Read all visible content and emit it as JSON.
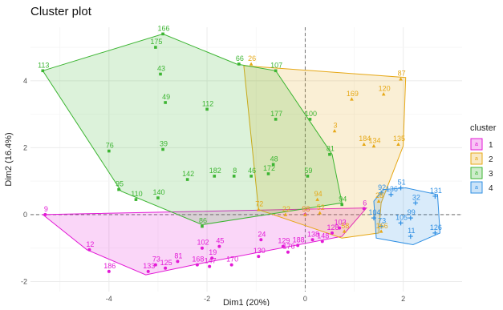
{
  "chart_data": {
    "type": "scatter",
    "title": "Cluster plot",
    "xlabel": "Dim1 (20%)",
    "ylabel": "Dim2 (16.4%)",
    "xlim": [
      -5.6,
      3.2
    ],
    "ylim": [
      -2.3,
      5.6
    ],
    "x_ticks": [
      -4,
      -2,
      0,
      2
    ],
    "y_ticks": [
      -2,
      0,
      2,
      4
    ],
    "grid": true,
    "legend": {
      "title": "cluster",
      "position": "right"
    },
    "series": [
      {
        "name": "1",
        "color": "#e31ad6",
        "marker": "circle",
        "points": [
          {
            "label": "9",
            "x": -5.3,
            "y": 0.0
          },
          {
            "label": "12",
            "x": -4.4,
            "y": -1.05
          },
          {
            "label": "73",
            "x": -3.05,
            "y": -1.5
          },
          {
            "label": "81",
            "x": -2.6,
            "y": -1.4
          },
          {
            "label": "125",
            "x": -2.85,
            "y": -1.6
          },
          {
            "label": "186",
            "x": -4.0,
            "y": -1.7
          },
          {
            "label": "133",
            "x": -3.2,
            "y": -1.7
          },
          {
            "label": "168",
            "x": -2.2,
            "y": -1.5
          },
          {
            "label": "45",
            "x": -1.75,
            "y": -0.95
          },
          {
            "label": "19",
            "x": -1.9,
            "y": -1.3
          },
          {
            "label": "147",
            "x": -1.95,
            "y": -1.55
          },
          {
            "label": "170",
            "x": -1.5,
            "y": -1.5
          },
          {
            "label": "24",
            "x": -0.9,
            "y": -0.75
          },
          {
            "label": "129",
            "x": -0.45,
            "y": -0.95
          },
          {
            "label": "188",
            "x": -0.15,
            "y": -0.92
          },
          {
            "label": "130",
            "x": -0.95,
            "y": -1.25
          },
          {
            "label": "176",
            "x": -0.35,
            "y": -1.12
          },
          {
            "label": "138",
            "x": 0.15,
            "y": -0.75
          },
          {
            "label": "148",
            "x": 0.35,
            "y": -0.8
          },
          {
            "label": "128",
            "x": 0.55,
            "y": -0.55
          },
          {
            "label": "103",
            "x": 0.7,
            "y": -0.4
          },
          {
            "label": "6",
            "x": 1.2,
            "y": 0.18
          },
          {
            "label": "102",
            "x": -2.1,
            "y": -1.0
          },
          {
            "label": "98",
            "x": 0.0,
            "y": 0.0
          }
        ]
      },
      {
        "name": "2",
        "color": "#e6a817",
        "marker": "triangle",
        "points": [
          {
            "label": "26",
            "x": -1.1,
            "y": 4.5
          },
          {
            "label": "87",
            "x": 1.95,
            "y": 4.05
          },
          {
            "label": "120",
            "x": 1.6,
            "y": 3.6
          },
          {
            "label": "169",
            "x": 0.95,
            "y": 3.45
          },
          {
            "label": "3",
            "x": 0.6,
            "y": 2.5
          },
          {
            "label": "184",
            "x": 1.2,
            "y": 2.1
          },
          {
            "label": "134",
            "x": 1.4,
            "y": 2.05
          },
          {
            "label": "135",
            "x": 1.9,
            "y": 2.1
          },
          {
            "label": "94",
            "x": 0.25,
            "y": 0.45
          },
          {
            "label": "72",
            "x": -0.95,
            "y": 0.15
          },
          {
            "label": "22",
            "x": -0.4,
            "y": 0.0
          },
          {
            "label": "98",
            "x": 0.0,
            "y": 0.0
          },
          {
            "label": "52",
            "x": 0.3,
            "y": 0.05
          },
          {
            "label": "28",
            "x": 1.5,
            "y": 0.4
          },
          {
            "label": "166",
            "x": 1.55,
            "y": -0.5
          },
          {
            "label": "58",
            "x": 0.8,
            "y": -0.5
          }
        ]
      },
      {
        "name": "3",
        "color": "#3cb532",
        "marker": "square",
        "points": [
          {
            "label": "113",
            "x": -5.35,
            "y": 4.3
          },
          {
            "label": "166",
            "x": -2.9,
            "y": 5.4
          },
          {
            "label": "175",
            "x": -3.05,
            "y": 5.0
          },
          {
            "label": "43",
            "x": -2.95,
            "y": 4.2
          },
          {
            "label": "49",
            "x": -2.85,
            "y": 3.35
          },
          {
            "label": "112",
            "x": -2.0,
            "y": 3.15
          },
          {
            "label": "66",
            "x": -1.35,
            "y": 4.5
          },
          {
            "label": "107",
            "x": -0.6,
            "y": 4.3
          },
          {
            "label": "177",
            "x": -0.6,
            "y": 2.85
          },
          {
            "label": "100",
            "x": 0.1,
            "y": 2.85
          },
          {
            "label": "76",
            "x": -4.0,
            "y": 1.9
          },
          {
            "label": "39",
            "x": -2.9,
            "y": 1.95
          },
          {
            "label": "81",
            "x": 0.5,
            "y": 1.8
          },
          {
            "label": "48",
            "x": -0.65,
            "y": 1.5
          },
          {
            "label": "172",
            "x": -0.75,
            "y": 1.22
          },
          {
            "label": "46",
            "x": -1.1,
            "y": 1.15
          },
          {
            "label": "8",
            "x": -1.45,
            "y": 1.15
          },
          {
            "label": "182",
            "x": -1.85,
            "y": 1.15
          },
          {
            "label": "142",
            "x": -2.4,
            "y": 1.05
          },
          {
            "label": "59",
            "x": 0.05,
            "y": 1.15
          },
          {
            "label": "95",
            "x": -3.8,
            "y": 0.75
          },
          {
            "label": "110",
            "x": -3.45,
            "y": 0.45
          },
          {
            "label": "140",
            "x": -3.0,
            "y": 0.5
          },
          {
            "label": "86",
            "x": -2.1,
            "y": -0.35
          },
          {
            "label": "94",
            "x": 0.75,
            "y": 0.3
          }
        ]
      },
      {
        "name": "4",
        "color": "#2f8fe3",
        "marker": "plus",
        "points": [
          {
            "label": "51",
            "x": 1.95,
            "y": 0.8
          },
          {
            "label": "92",
            "x": 1.55,
            "y": 0.65
          },
          {
            "label": "136",
            "x": 1.75,
            "y": 0.6
          },
          {
            "label": "131",
            "x": 2.65,
            "y": 0.55
          },
          {
            "label": "32",
            "x": 2.25,
            "y": 0.35
          },
          {
            "label": "99",
            "x": 2.15,
            "y": -0.1
          },
          {
            "label": "105",
            "x": 1.95,
            "y": -0.25
          },
          {
            "label": "73",
            "x": 1.55,
            "y": -0.35
          },
          {
            "label": "11",
            "x": 2.15,
            "y": -0.65
          },
          {
            "label": "126",
            "x": 2.65,
            "y": -0.55
          },
          {
            "label": "104",
            "x": 1.4,
            "y": -0.1
          }
        ]
      }
    ],
    "hulls": [
      {
        "cluster": "1",
        "points": [
          {
            "x": -5.35,
            "y": 0.0
          },
          {
            "x": 1.25,
            "y": 0.2
          },
          {
            "x": 0.75,
            "y": -0.65
          },
          {
            "x": -2.1,
            "y": -1.45
          },
          {
            "x": -3.25,
            "y": -1.8
          },
          {
            "x": -4.45,
            "y": -1.05
          }
        ]
      },
      {
        "cluster": "2",
        "points": [
          {
            "x": -1.25,
            "y": 4.45
          },
          {
            "x": 2.05,
            "y": 4.1
          },
          {
            "x": 2.0,
            "y": 2.05
          },
          {
            "x": 1.55,
            "y": 0.35
          },
          {
            "x": 1.5,
            "y": -0.55
          },
          {
            "x": 0.75,
            "y": -0.7
          },
          {
            "x": -0.95,
            "y": 0.15
          }
        ]
      },
      {
        "cluster": "3",
        "points": [
          {
            "x": -5.35,
            "y": 4.3
          },
          {
            "x": -2.9,
            "y": 5.4
          },
          {
            "x": -1.4,
            "y": 4.5
          },
          {
            "x": -0.6,
            "y": 4.3
          },
          {
            "x": 0.55,
            "y": 1.8
          },
          {
            "x": 0.75,
            "y": 0.35
          },
          {
            "x": -2.1,
            "y": -0.3
          },
          {
            "x": -3.75,
            "y": 0.7
          }
        ]
      },
      {
        "cluster": "4",
        "points": [
          {
            "x": 2.05,
            "y": 0.8
          },
          {
            "x": 2.7,
            "y": 0.6
          },
          {
            "x": 2.75,
            "y": -0.55
          },
          {
            "x": 2.2,
            "y": -0.9
          },
          {
            "x": 1.45,
            "y": -0.7
          },
          {
            "x": 1.4,
            "y": 0.4
          },
          {
            "x": 1.6,
            "y": 0.75
          }
        ]
      }
    ]
  }
}
